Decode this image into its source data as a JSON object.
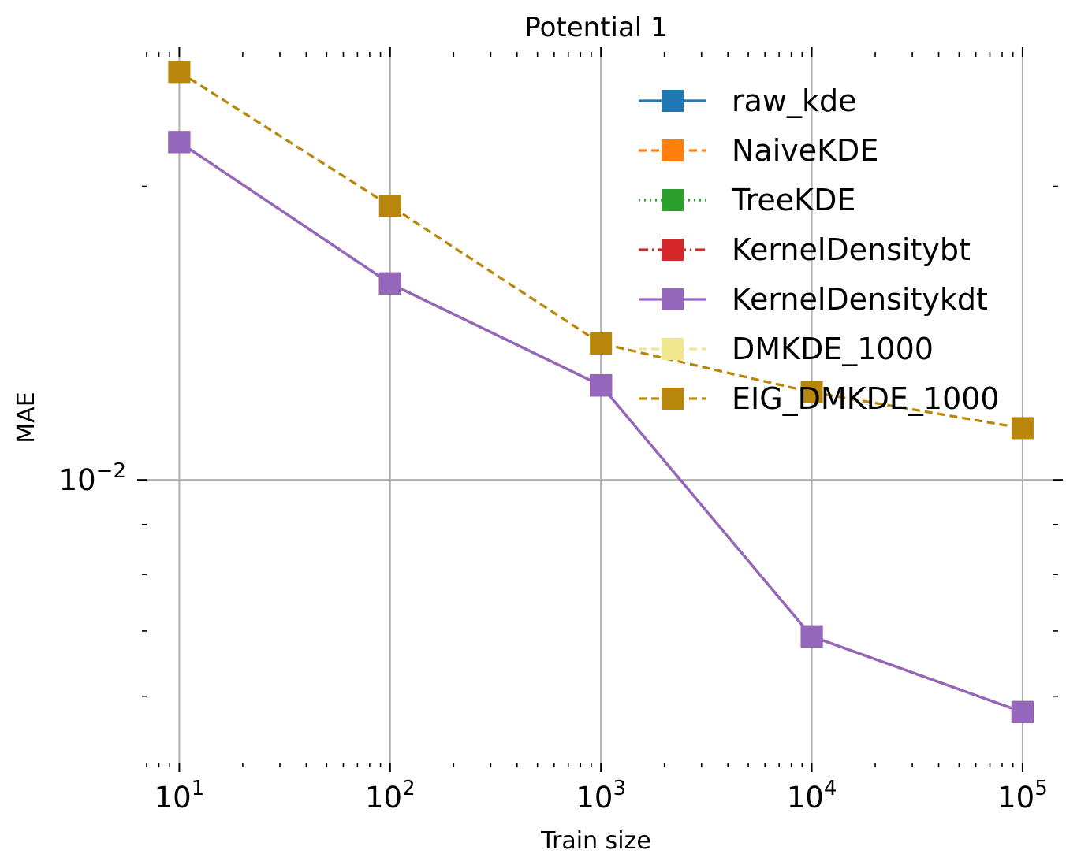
{
  "chart_data": {
    "type": "line",
    "title": "Potential 1",
    "xlabel": "Train size",
    "ylabel": "MAE",
    "xscale": "log",
    "yscale": "log",
    "xlim": [
      7,
      140000
    ],
    "ylim": [
      0.00513,
      0.02716
    ],
    "grid": true,
    "legend_position": "top-right",
    "x": [
      10,
      100,
      1000,
      10000,
      100000
    ],
    "x_tick_labels": [
      {
        "base": "10",
        "exp": "1",
        "value": 10
      },
      {
        "base": "10",
        "exp": "2",
        "value": 100
      },
      {
        "base": "10",
        "exp": "3",
        "value": 1000
      },
      {
        "base": "10",
        "exp": "4",
        "value": 10000
      },
      {
        "base": "10",
        "exp": "5",
        "value": 100000
      }
    ],
    "y_tick_labels": [
      {
        "base": "10",
        "exp": "−2",
        "value": 0.01
      }
    ],
    "series": [
      {
        "name": "raw_kde",
        "color": "#1f77b4",
        "dash": "solid",
        "marker": "square",
        "values": [
          0.0222,
          0.0159,
          0.0125,
          0.00691,
          0.00578
        ]
      },
      {
        "name": "NaiveKDE",
        "color": "#ff7f0e",
        "dash": "dashed",
        "marker": "square",
        "values": [
          0.0222,
          0.0159,
          0.0125,
          0.00691,
          0.00578
        ]
      },
      {
        "name": "TreeKDE",
        "color": "#2ca02c",
        "dash": "dotted",
        "marker": "square",
        "values": [
          0.0222,
          0.0159,
          0.0125,
          0.00691,
          0.00578
        ]
      },
      {
        "name": "KernelDensitybt",
        "color": "#d62728",
        "dash": "dashdot",
        "marker": "square",
        "values": [
          0.0222,
          0.0159,
          0.0125,
          0.00691,
          0.00578
        ]
      },
      {
        "name": "KernelDensitykdt",
        "color": "#9467bd",
        "dash": "solid",
        "marker": "square",
        "values": [
          0.0222,
          0.0159,
          0.0125,
          0.00691,
          0.00578
        ]
      },
      {
        "name": "DMKDE_1000",
        "color": "#f0e68c",
        "dash": "dashed",
        "marker": "square",
        "values": [
          0.0262,
          0.0191,
          0.0138,
          0.0123,
          0.0113
        ]
      },
      {
        "name": "EIG_DMKDE_1000",
        "color": "#b8860b",
        "dash": "dashed",
        "marker": "square",
        "values": [
          0.0262,
          0.0191,
          0.0138,
          0.0123,
          0.0113
        ]
      }
    ]
  }
}
